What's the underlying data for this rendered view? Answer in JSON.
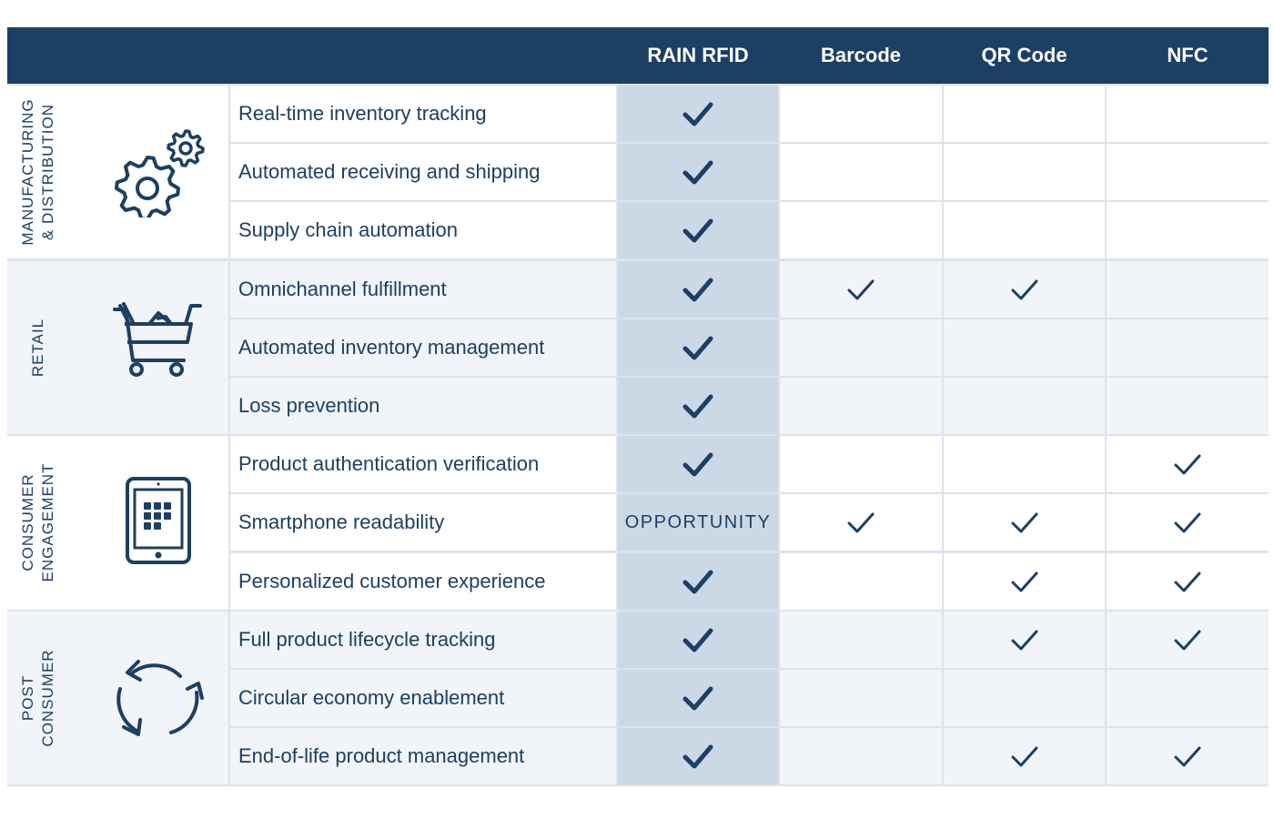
{
  "header": {
    "columns": [
      "RAIN RFID",
      "Barcode",
      "QR Code",
      "NFC"
    ]
  },
  "colors": {
    "header_bg": "#1d3f63",
    "text": "#1d3f63",
    "rfid_column": "#cbd9e7",
    "shaded_row": "#f1f4f8",
    "white_row": "#ffffff",
    "grid": "#dde3ea"
  },
  "categories": [
    {
      "label_line1": "MANUFACTURING",
      "label_line2": "& DISTRIBUTION",
      "icon": "gears-icon",
      "shaded": false,
      "rows": [
        {
          "feature": "Real-time inventory tracking",
          "rfid": "check",
          "barcode": "",
          "qr": "",
          "nfc": ""
        },
        {
          "feature": "Automated receiving and shipping",
          "rfid": "check",
          "barcode": "",
          "qr": "",
          "nfc": ""
        },
        {
          "feature": "Supply chain automation",
          "rfid": "check",
          "barcode": "",
          "qr": "",
          "nfc": ""
        }
      ]
    },
    {
      "label_line1": "RETAIL",
      "label_line2": "",
      "icon": "shopping-cart-icon",
      "shaded": true,
      "rows": [
        {
          "feature": "Omnichannel fulfillment",
          "rfid": "check",
          "barcode": "check",
          "qr": "check",
          "nfc": ""
        },
        {
          "feature": "Automated inventory management",
          "rfid": "check",
          "barcode": "",
          "qr": "",
          "nfc": ""
        },
        {
          "feature": "Loss prevention",
          "rfid": "check",
          "barcode": "",
          "qr": "",
          "nfc": ""
        }
      ]
    },
    {
      "label_line1": "CONSUMER",
      "label_line2": "ENGAGEMENT",
      "icon": "tablet-icon",
      "shaded": false,
      "rows": [
        {
          "feature": "Product authentication verification",
          "rfid": "check",
          "barcode": "",
          "qr": "",
          "nfc": "check"
        },
        {
          "feature": "Smartphone readability",
          "rfid": "OPPORTUNITY",
          "barcode": "check",
          "qr": "check",
          "nfc": "check"
        },
        {
          "feature": "Personalized customer experience",
          "rfid": "check",
          "barcode": "",
          "qr": "check",
          "nfc": "check"
        }
      ]
    },
    {
      "label_line1": "POST",
      "label_line2": "CONSUMER",
      "icon": "recycle-arrows-icon",
      "shaded": true,
      "rows": [
        {
          "feature": "Full product lifecycle tracking",
          "rfid": "check",
          "barcode": "",
          "qr": "check",
          "nfc": "check"
        },
        {
          "feature": "Circular economy enablement",
          "rfid": "check",
          "barcode": "",
          "qr": "",
          "nfc": ""
        },
        {
          "feature": "End-of-life product management",
          "rfid": "check",
          "barcode": "",
          "qr": "check",
          "nfc": "check"
        }
      ]
    }
  ]
}
